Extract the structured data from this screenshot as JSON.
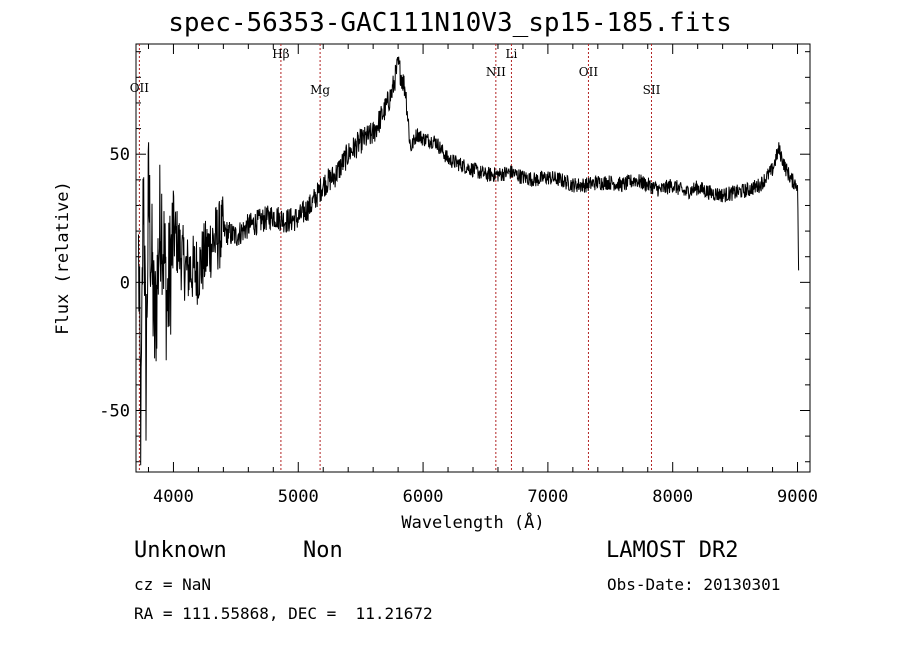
{
  "chart_data": {
    "type": "line",
    "title": "spec-56353-GAC111N10V3_sp15-185.fits",
    "xlabel": "Wavelength (Å)",
    "ylabel": "Flux (relative)",
    "xlim": [
      3700,
      9100
    ],
    "ylim": [
      -74,
      93
    ],
    "xticks": [
      4000,
      5000,
      6000,
      7000,
      8000,
      9000
    ],
    "yticks": [
      -50,
      0,
      50
    ],
    "grid": false,
    "line_color": "#000000",
    "marker_color": "#b22222",
    "lines": [
      {
        "label": "OII",
        "x": 3727
      },
      {
        "label": "Hβ",
        "x": 4861
      },
      {
        "label": "Mg",
        "x": 5175
      },
      {
        "label": "NII",
        "x": 6583
      },
      {
        "label": "Li",
        "x": 6708
      },
      {
        "label": "OII",
        "x": 7325
      },
      {
        "label": "SII",
        "x": 7830
      }
    ],
    "series": [
      {
        "x": [
          3720,
          3740,
          3760,
          3780,
          3800,
          3850,
          3900,
          3950,
          4000,
          4100,
          4200,
          4300,
          4400,
          4500,
          4600,
          4700,
          4800,
          4900,
          5000,
          5100,
          5200,
          5300,
          5400,
          5500,
          5600,
          5700,
          5750,
          5800,
          5830,
          5860,
          5900,
          5950,
          6000,
          6100,
          6200,
          6300,
          6400,
          6500,
          6600,
          6700,
          6800,
          6900,
          7000,
          7100,
          7200,
          7300,
          7400,
          7500,
          7600,
          7700,
          7800,
          7900,
          8000,
          8100,
          8200,
          8300,
          8400,
          8500,
          8600,
          8700,
          8800,
          8850,
          8900,
          8950,
          9000,
          9010
        ],
        "y": [
          10,
          -60,
          45,
          -40,
          35,
          -20,
          30,
          -10,
          20,
          5,
          5,
          15,
          20,
          18,
          22,
          24,
          26,
          24,
          25,
          30,
          38,
          42,
          50,
          55,
          58,
          68,
          74,
          85,
          80,
          75,
          52,
          58,
          56,
          55,
          48,
          46,
          44,
          42,
          42,
          43,
          41,
          40,
          41,
          40,
          38,
          38,
          39,
          39,
          38,
          40,
          38,
          36,
          38,
          35,
          37,
          35,
          34,
          35,
          36,
          38,
          44,
          52,
          45,
          40,
          38,
          0
        ]
      }
    ]
  },
  "object": {
    "name": "Unknown",
    "class": "Non",
    "survey": "LAMOST DR2"
  },
  "info": {
    "cz": "cz = NaN",
    "obs_date": "Obs-Date: 20130301",
    "radec": "RA = 111.55868, DEC =  11.21672"
  }
}
